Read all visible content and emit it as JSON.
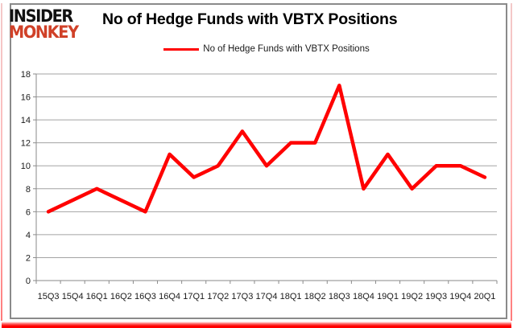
{
  "logo": {
    "line1": "INSIDER",
    "line2": "MONKEY"
  },
  "header": {
    "title": "No of Hedge Funds with VBTX Positions"
  },
  "legend": {
    "label": "No of Hedge Funds with VBTX Positions"
  },
  "colors": {
    "line": "#ff0000",
    "logo_red": "#d04128",
    "grid": "#a3a3a3",
    "axis": "#8a8a8a",
    "frame": "#8a8a8a",
    "edge_red": "#ff0000"
  },
  "chart_data": {
    "type": "line",
    "title": "No of Hedge Funds with VBTX Positions",
    "categories": [
      "15Q3",
      "15Q4",
      "16Q1",
      "16Q2",
      "16Q3",
      "16Q4",
      "17Q1",
      "17Q2",
      "17Q3",
      "17Q4",
      "18Q1",
      "18Q2",
      "18Q3",
      "18Q4",
      "19Q1",
      "19Q2",
      "19Q3",
      "19Q4",
      "20Q1"
    ],
    "series": [
      {
        "name": "No of Hedge Funds with VBTX Positions",
        "color": "#ff0000",
        "values": [
          6,
          7,
          8,
          7,
          6,
          11,
          9,
          10,
          13,
          10,
          12,
          12,
          17,
          8,
          11,
          8,
          10,
          10,
          9
        ]
      }
    ],
    "xlabel": "",
    "ylabel": "",
    "ylim": [
      0,
      18
    ],
    "ytick_step": 2,
    "grid": true,
    "legend_position": "top"
  }
}
